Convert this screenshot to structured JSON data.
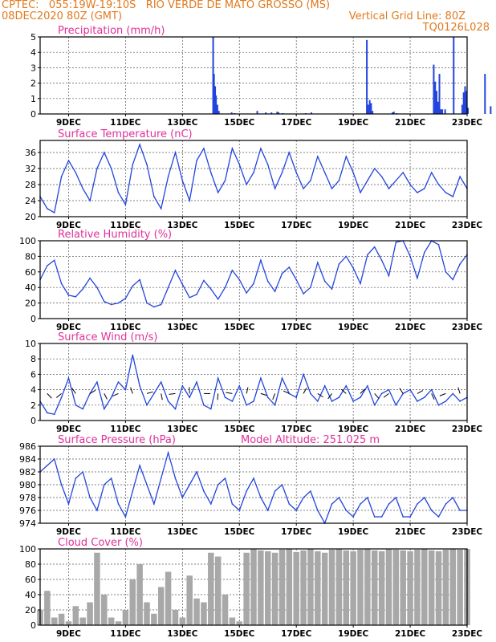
{
  "header": {
    "line1_left": "CPTEC:   055:19W-19:10S   RIO VERDE DE MATO GROSSO (MS)",
    "line2_left": "08DEC2020 80Z (GMT)",
    "line2_right": "Vertical Grid Line: 80Z",
    "line3_right": "TQ0126L028"
  },
  "colors": {
    "header": "#e07a1f",
    "title": "#e0309a",
    "series": "#2244dd",
    "wind": "#000000",
    "cloud": "#a8a8a8"
  },
  "x_ticks": [
    "9DEC",
    "11DEC",
    "13DEC",
    "15DEC",
    "17DEC",
    "19DEC",
    "21DEC",
    "23DEC"
  ],
  "chart_data": [
    {
      "type": "bar",
      "title": "Precipitation  (mm/h)",
      "ylim": [
        0,
        5
      ],
      "yticks": [
        "0",
        "1",
        "2",
        "3",
        "4",
        "5"
      ],
      "x_unit": "days since 08DEC2020 08Z",
      "x": [
        6.05,
        6.08,
        6.12,
        6.15,
        6.2,
        6.25,
        6.7,
        6.8,
        7.6,
        7.9,
        8.1,
        8.3,
        8.35,
        8.5,
        9.3,
        9.5,
        11.45,
        11.5,
        11.55,
        11.6,
        11.65,
        12.35,
        12.4,
        12.5,
        13.8,
        13.85,
        13.9,
        13.95,
        14.0,
        14.05,
        14.1,
        14.2,
        14.5,
        14.8,
        14.85,
        14.9,
        14.95,
        15.0,
        15.6,
        15.8
      ],
      "values": [
        5.0,
        2.6,
        1.8,
        1.2,
        0.6,
        0.2,
        0.1,
        0.05,
        0.2,
        0.1,
        0.1,
        0.15,
        0.1,
        0.05,
        0.05,
        0.1,
        4.8,
        0.6,
        0.9,
        0.7,
        0.2,
        0.1,
        0.15,
        0.05,
        3.2,
        2.1,
        1.5,
        0.8,
        2.6,
        0.3,
        0.3,
        0.3,
        5.0,
        0.6,
        1.4,
        1.8,
        1.5,
        0.4,
        2.6,
        0.5
      ]
    },
    {
      "type": "line",
      "title": "Surface Temperature (nC)",
      "ylim": [
        20,
        39
      ],
      "yticks": [
        "20",
        "24",
        "28",
        "32",
        "36"
      ],
      "x_unit": "days since 08DEC2020 08Z",
      "x": [
        0,
        0.25,
        0.5,
        0.75,
        1,
        1.25,
        1.5,
        1.75,
        2,
        2.25,
        2.5,
        2.75,
        3,
        3.25,
        3.5,
        3.75,
        4,
        4.25,
        4.5,
        4.75,
        5,
        5.25,
        5.5,
        5.75,
        6,
        6.25,
        6.5,
        6.75,
        7,
        7.25,
        7.5,
        7.75,
        8,
        8.25,
        8.5,
        8.75,
        9,
        9.25,
        9.5,
        9.75,
        10,
        10.25,
        10.5,
        10.75,
        11,
        11.25,
        11.5,
        11.75,
        12,
        12.25,
        12.5,
        12.75,
        13,
        13.25,
        13.5,
        13.75,
        14,
        14.25,
        14.5,
        14.75,
        15
      ],
      "values": [
        25,
        22,
        21,
        30,
        34,
        31,
        27,
        24,
        32,
        36,
        32,
        26,
        23,
        33,
        38,
        33,
        25,
        22,
        30,
        36,
        29,
        24,
        34,
        37,
        31,
        26,
        29,
        37,
        33,
        28,
        31,
        37,
        33,
        27,
        31,
        36,
        31,
        27,
        29,
        35,
        31,
        27,
        29,
        35,
        31,
        26,
        29,
        32,
        30,
        27,
        29,
        31,
        28,
        26,
        27,
        31,
        28,
        26,
        25,
        30,
        27
      ]
    },
    {
      "type": "line",
      "title": "Relative Humidity  (%)",
      "ylim": [
        0,
        100
      ],
      "yticks": [
        "0",
        "20",
        "40",
        "60",
        "80",
        "100"
      ],
      "x_unit": "days since 08DEC2020 08Z",
      "x": [
        0,
        0.25,
        0.5,
        0.75,
        1,
        1.25,
        1.5,
        1.75,
        2,
        2.25,
        2.5,
        2.75,
        3,
        3.25,
        3.5,
        3.75,
        4,
        4.25,
        4.5,
        4.75,
        5,
        5.25,
        5.5,
        5.75,
        6,
        6.25,
        6.5,
        6.75,
        7,
        7.25,
        7.5,
        7.75,
        8,
        8.25,
        8.5,
        8.75,
        9,
        9.25,
        9.5,
        9.75,
        10,
        10.25,
        10.5,
        10.75,
        11,
        11.25,
        11.5,
        11.75,
        12,
        12.25,
        12.5,
        12.75,
        13,
        13.25,
        13.5,
        13.75,
        14,
        14.25,
        14.5,
        14.75,
        15
      ],
      "values": [
        50,
        68,
        75,
        45,
        30,
        28,
        38,
        52,
        40,
        22,
        18,
        20,
        26,
        42,
        50,
        20,
        15,
        18,
        40,
        62,
        44,
        27,
        31,
        49,
        38,
        25,
        40,
        62,
        50,
        33,
        45,
        75,
        48,
        35,
        58,
        66,
        50,
        32,
        40,
        72,
        48,
        38,
        70,
        80,
        65,
        45,
        82,
        92,
        75,
        55,
        98,
        100,
        80,
        52,
        85,
        100,
        95,
        60,
        50,
        70,
        82
      ]
    },
    {
      "type": "line",
      "title": "Surface Wind  (m/s)",
      "ylim": [
        0,
        10
      ],
      "yticks": [
        "0",
        "2",
        "4",
        "6",
        "8",
        "10"
      ],
      "x_unit": "days since 08DEC2020 08Z",
      "x": [
        0,
        0.25,
        0.5,
        0.75,
        1,
        1.25,
        1.5,
        1.75,
        2,
        2.25,
        2.5,
        2.75,
        3,
        3.25,
        3.5,
        3.75,
        4,
        4.25,
        4.5,
        4.75,
        5,
        5.25,
        5.5,
        5.75,
        6,
        6.25,
        6.5,
        6.75,
        7,
        7.25,
        7.5,
        7.75,
        8,
        8.25,
        8.5,
        8.75,
        9,
        9.25,
        9.5,
        9.75,
        10,
        10.25,
        10.5,
        10.75,
        11,
        11.25,
        11.5,
        11.75,
        12,
        12.25,
        12.5,
        12.75,
        13,
        13.25,
        13.5,
        13.75,
        14,
        14.25,
        14.5,
        14.75,
        15
      ],
      "values": [
        2.5,
        1.0,
        0.8,
        3.0,
        5.5,
        2.0,
        1.5,
        3.5,
        5.0,
        1.5,
        3.0,
        5.0,
        4.0,
        8.5,
        4.5,
        2.0,
        3.5,
        5.0,
        2.5,
        1.5,
        4.5,
        3.0,
        5.0,
        2.0,
        1.5,
        5.5,
        3.0,
        2.5,
        4.5,
        2.0,
        2.5,
        5.5,
        3.0,
        2.0,
        5.5,
        3.5,
        3.0,
        6.0,
        3.5,
        2.5,
        4.5,
        2.5,
        3.0,
        4.5,
        2.5,
        3.0,
        4.5,
        2.0,
        3.5,
        4.0,
        2.0,
        3.5,
        4.0,
        2.5,
        3.0,
        4.0,
        2.0,
        2.5,
        3.5,
        2.5,
        3.0
      ]
    },
    {
      "type": "line",
      "title": "Surface Pressure  (hPa)",
      "subtitle": "Model Altitude:  251.025  m",
      "ylim": [
        974,
        986
      ],
      "yticks": [
        "974",
        "976",
        "978",
        "980",
        "982",
        "984",
        "986"
      ],
      "x_unit": "days since 08DEC2020 08Z",
      "x": [
        0,
        0.25,
        0.5,
        0.75,
        1,
        1.25,
        1.5,
        1.75,
        2,
        2.25,
        2.5,
        2.75,
        3,
        3.25,
        3.5,
        3.75,
        4,
        4.25,
        4.5,
        4.75,
        5,
        5.25,
        5.5,
        5.75,
        6,
        6.25,
        6.5,
        6.75,
        7,
        7.25,
        7.5,
        7.75,
        8,
        8.25,
        8.5,
        8.75,
        9,
        9.25,
        9.5,
        9.75,
        10,
        10.25,
        10.5,
        10.75,
        11,
        11.25,
        11.5,
        11.75,
        12,
        12.25,
        12.5,
        12.75,
        13,
        13.25,
        13.5,
        13.75,
        14,
        14.25,
        14.5,
        14.75,
        15
      ],
      "values": [
        982,
        983,
        984,
        980,
        977,
        981,
        982,
        978,
        976,
        980,
        981,
        977,
        975,
        979,
        983,
        980,
        977,
        981,
        985,
        981,
        978,
        980,
        982,
        979,
        977,
        980,
        981,
        977,
        976,
        979,
        981,
        978,
        976,
        979,
        980,
        977,
        976,
        978,
        979,
        976,
        974,
        977,
        978,
        976,
        975,
        977,
        978,
        975,
        975,
        977,
        978,
        975,
        975,
        977,
        978,
        976,
        975,
        977,
        978,
        976,
        976
      ]
    },
    {
      "type": "bar",
      "title": "Cloud Cover  (%)",
      "ylim": [
        0,
        100
      ],
      "yticks": [
        "0",
        "20",
        "40",
        "60",
        "80",
        "100"
      ],
      "x_unit": "days since 08DEC2020 08Z",
      "x": [
        0,
        0.25,
        0.5,
        0.75,
        1,
        1.25,
        1.5,
        1.75,
        2,
        2.25,
        2.5,
        2.75,
        3,
        3.25,
        3.5,
        3.75,
        4,
        4.25,
        4.5,
        4.75,
        5,
        5.25,
        5.5,
        5.75,
        6,
        6.25,
        6.5,
        6.75,
        7,
        7.25,
        7.5,
        7.75,
        8,
        8.25,
        8.5,
        8.75,
        9,
        9.25,
        9.5,
        9.75,
        10,
        10.25,
        10.5,
        10.75,
        11,
        11.25,
        11.5,
        11.75,
        12,
        12.25,
        12.5,
        12.75,
        13,
        13.25,
        13.5,
        13.75,
        14,
        14.25,
        14.5,
        14.75,
        15
      ],
      "values": [
        20,
        45,
        10,
        15,
        5,
        25,
        10,
        30,
        95,
        40,
        10,
        5,
        20,
        60,
        80,
        30,
        15,
        50,
        70,
        20,
        10,
        65,
        35,
        30,
        95,
        90,
        40,
        10,
        5,
        95,
        100,
        98,
        97,
        95,
        99,
        100,
        96,
        98,
        100,
        97,
        95,
        99,
        100,
        98,
        97,
        99,
        100,
        98,
        97,
        100,
        99,
        98,
        97,
        99,
        100,
        98,
        97,
        99,
        100,
        99,
        100
      ]
    }
  ]
}
